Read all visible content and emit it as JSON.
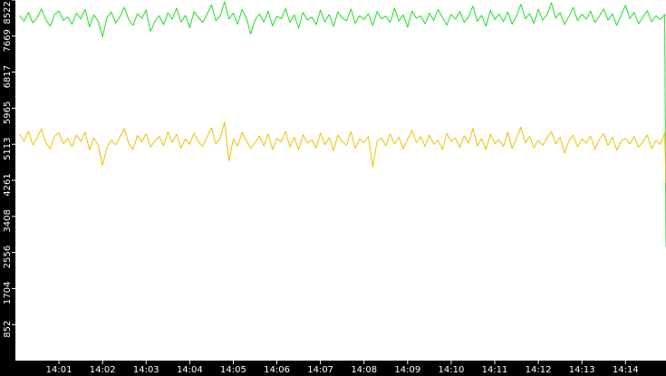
{
  "chart_data": {
    "type": "line",
    "x": [
      0.1,
      0.2,
      0.3,
      0.4,
      0.5,
      0.6,
      0.7,
      0.8,
      0.9,
      1.0,
      1.1,
      1.2,
      1.3,
      1.4,
      1.5,
      1.6,
      1.7,
      1.8,
      1.9,
      2.0,
      2.1,
      2.2,
      2.3,
      2.4,
      2.5,
      2.6,
      2.7,
      2.8,
      2.9,
      3.0,
      3.1,
      3.2,
      3.3,
      3.4,
      3.5,
      3.6,
      3.7,
      3.8,
      3.9,
      4.0,
      4.1,
      4.2,
      4.3,
      4.4,
      4.5,
      4.6,
      4.7,
      4.8,
      4.9,
      5.0,
      5.1,
      5.2,
      5.3,
      5.4,
      5.5,
      5.6,
      5.7,
      5.8,
      5.9,
      6.0,
      6.1,
      6.2,
      6.3,
      6.4,
      6.5,
      6.6,
      6.7,
      6.8,
      6.9,
      7.0,
      7.1,
      7.2,
      7.3,
      7.4,
      7.5,
      7.6,
      7.7,
      7.8,
      7.9,
      8.0,
      8.1,
      8.2,
      8.3,
      8.4,
      8.5,
      8.6,
      8.7,
      8.8,
      8.9,
      9.0,
      9.1,
      9.2,
      9.3,
      9.4,
      9.5,
      9.6,
      9.7,
      9.8,
      9.9,
      10.0,
      10.1,
      10.2,
      10.3,
      10.4,
      10.5,
      10.6,
      10.7,
      10.8,
      10.9,
      11.0,
      11.1,
      11.2,
      11.3,
      11.4,
      11.5,
      11.6,
      11.7,
      11.8,
      11.9,
      12.0,
      12.1,
      12.2,
      12.3,
      12.4,
      12.5,
      12.6,
      12.7,
      12.8,
      12.9,
      13.0,
      13.1,
      13.2,
      13.3,
      13.4,
      13.5,
      13.6,
      13.7,
      13.8,
      13.9,
      14.0,
      14.1,
      14.2,
      14.3,
      14.4,
      14.5,
      14.6,
      14.7,
      14.8,
      14.9,
      14.93
    ],
    "series": [
      {
        "color": "#1ee01e",
        "values": [
          8150,
          8020,
          8230,
          7980,
          8100,
          8310,
          8050,
          7900,
          8180,
          8260,
          8040,
          8120,
          7950,
          8210,
          8080,
          8300,
          7890,
          8170,
          8020,
          7650,
          8100,
          8240,
          7980,
          8130,
          8350,
          8060,
          7920,
          8200,
          8090,
          8280,
          7780,
          8010,
          8150,
          7940,
          8220,
          8070,
          8330,
          8000,
          8160,
          7870,
          8250,
          8110,
          7990,
          8190,
          8410,
          8030,
          8150,
          8480,
          8070,
          8210,
          7950,
          8300,
          8100,
          7720,
          8050,
          8190,
          8000,
          8260,
          7910,
          8140,
          8080,
          8320,
          7990,
          8170,
          7860,
          8230,
          8050,
          8120,
          7940,
          8280,
          8010,
          8180,
          7900,
          8240,
          8100,
          8030,
          8310,
          7970,
          8150,
          8060,
          8200,
          7920,
          8250,
          8080,
          8140,
          7990,
          8330,
          8020,
          8170,
          7880,
          8260,
          8090,
          8150,
          7960,
          8210,
          8040,
          8300,
          8110,
          7930,
          8180,
          8070,
          8250,
          7990,
          8130,
          8380,
          8020,
          8160,
          7900,
          8280,
          8060,
          8190,
          8010,
          8240,
          7950,
          8150,
          8420,
          8080,
          8200,
          7970,
          8300,
          8050,
          8170,
          8460,
          8090,
          8220,
          7940,
          8130,
          8350,
          8030,
          8190,
          8070,
          8260,
          7990,
          8140,
          8310,
          8050,
          8200,
          7920,
          8160,
          8400,
          8080,
          8230,
          7960,
          8120,
          8270,
          8010,
          8150,
          8060,
          8180,
          2700
        ]
      },
      {
        "color": "#f0c000",
        "values": [
          5350,
          5180,
          5420,
          5090,
          5270,
          5480,
          5150,
          5010,
          5300,
          5390,
          5120,
          5250,
          5060,
          5330,
          5180,
          5400,
          4980,
          5260,
          5090,
          4620,
          5040,
          5210,
          5100,
          5280,
          5480,
          5130,
          4990,
          5320,
          5170,
          5360,
          5050,
          5190,
          5300,
          5080,
          5410,
          5160,
          5350,
          5020,
          5240,
          5110,
          5380,
          5170,
          5060,
          5290,
          5500,
          5120,
          5260,
          5640,
          4720,
          5230,
          5070,
          5390,
          5200,
          5010,
          5150,
          5310,
          5080,
          5360,
          4990,
          5250,
          5170,
          5420,
          5050,
          5280,
          4980,
          5340,
          5140,
          5220,
          5030,
          5380,
          5100,
          5270,
          4960,
          5330,
          5180,
          5090,
          5410,
          5020,
          5240,
          5150,
          5300,
          4580,
          5190,
          5260,
          5080,
          5360,
          5120,
          5280,
          5010,
          5230,
          5440,
          5150,
          5290,
          5060,
          5330,
          5110,
          5210,
          4990,
          5370,
          5180,
          5260,
          5040,
          5310,
          5140,
          5490,
          5080,
          5250,
          4990,
          5350,
          5130,
          5220,
          5060,
          5400,
          5010,
          5270,
          5520,
          5140,
          5300,
          5030,
          5200,
          5090,
          5260,
          5410,
          5120,
          5280,
          4900,
          5190,
          5330,
          5050,
          5240,
          5140,
          5310,
          5000,
          5230,
          5370,
          5080,
          5280,
          4970,
          5190,
          5250,
          5120,
          5300,
          5040,
          5170,
          5330,
          5010,
          5200,
          5110,
          5380,
          4200
        ]
      }
    ],
    "xlim": [
      0,
      14.93
    ],
    "xticks": [
      {
        "value": 1,
        "label": "14:01"
      },
      {
        "value": 2,
        "label": "14:02"
      },
      {
        "value": 3,
        "label": "14:03"
      },
      {
        "value": 4,
        "label": "14:04"
      },
      {
        "value": 5,
        "label": "14:05"
      },
      {
        "value": 6,
        "label": "14:06"
      },
      {
        "value": 7,
        "label": "14:07"
      },
      {
        "value": 8,
        "label": "14:08"
      },
      {
        "value": 9,
        "label": "14:09"
      },
      {
        "value": 10,
        "label": "14:10"
      },
      {
        "value": 11,
        "label": "14:11"
      },
      {
        "value": 12,
        "label": "14:12"
      },
      {
        "value": 13,
        "label": "14:13"
      },
      {
        "value": 14,
        "label": "14:14"
      }
    ],
    "ylim": [
      0,
      8522
    ],
    "yticks": [
      852,
      1704,
      2556,
      3408,
      4261,
      5113,
      5965,
      6817,
      7669,
      8522
    ]
  }
}
